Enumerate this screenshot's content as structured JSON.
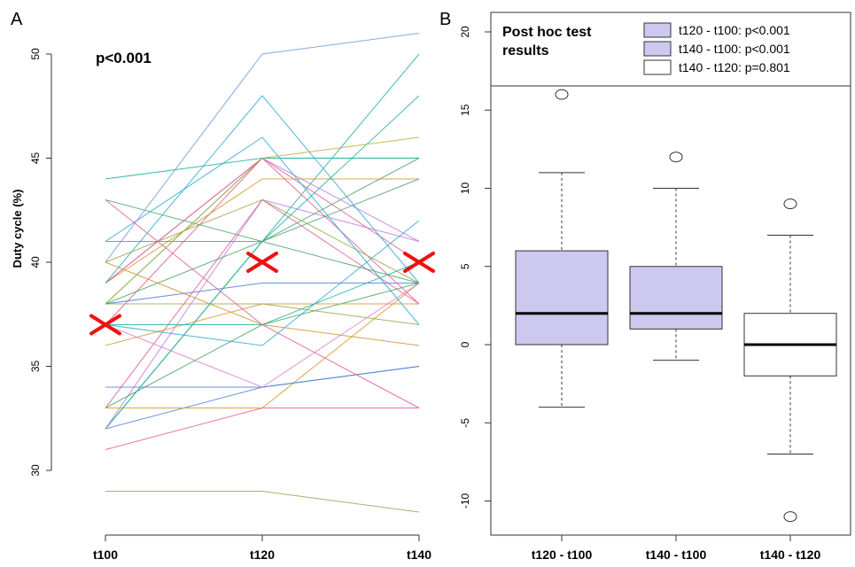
{
  "chart_data": [
    {
      "panel_label": "A",
      "type": "line",
      "annotation": "p<0.001",
      "ylabel": "Duty cycle (%)",
      "categories": [
        "t100",
        "t120",
        "t140"
      ],
      "y_ticks": [
        "30",
        "35",
        "40",
        "45",
        "50"
      ],
      "ylim": [
        27.5,
        51.5
      ],
      "mean_markers": [
        37,
        40,
        40
      ],
      "mean_marker_color": "#ee1111",
      "series": [
        {
          "values": [
            29,
            29,
            28
          ],
          "color": "#95a84a"
        },
        {
          "values": [
            31,
            33,
            33
          ],
          "color": "#e45a8e"
        },
        {
          "values": [
            32,
            34,
            35
          ],
          "color": "#4f7fd6"
        },
        {
          "values": [
            32,
            41,
            45
          ],
          "color": "#4aa66c"
        },
        {
          "values": [
            32,
            41,
            50
          ],
          "color": "#1fb0a0"
        },
        {
          "values": [
            32,
            43,
            41
          ],
          "color": "#c37adf"
        },
        {
          "values": [
            33,
            33,
            39
          ],
          "color": "#d6932c"
        },
        {
          "values": [
            33,
            37,
            39
          ],
          "color": "#4aa66c"
        },
        {
          "values": [
            33,
            43,
            38
          ],
          "color": "#e45a8e"
        },
        {
          "values": [
            34,
            34,
            35
          ],
          "color": "#4f7fd6"
        },
        {
          "values": [
            36,
            38,
            38
          ],
          "color": "#d6932c"
        },
        {
          "values": [
            37,
            36,
            42
          ],
          "color": "#2da9d6"
        },
        {
          "values": [
            37,
            37,
            40
          ],
          "color": "#1fb0a0"
        },
        {
          "values": [
            37,
            45,
            40
          ],
          "color": "#e45a8e"
        },
        {
          "values": [
            38,
            38,
            37
          ],
          "color": "#95a84a"
        },
        {
          "values": [
            38,
            39,
            39
          ],
          "color": "#4f7fd6"
        },
        {
          "values": [
            38,
            41,
            44
          ],
          "color": "#4aa66c"
        },
        {
          "values": [
            38,
            45,
            45
          ],
          "color": "#1fb0a0"
        },
        {
          "values": [
            39,
            45,
            41
          ],
          "color": "#c37adf"
        },
        {
          "values": [
            39,
            44,
            44
          ],
          "color": "#d6932c"
        },
        {
          "values": [
            39,
            45,
            38
          ],
          "color": "#e45a8e"
        },
        {
          "values": [
            39,
            48,
            39
          ],
          "color": "#2da9d6"
        },
        {
          "values": [
            40,
            37,
            36
          ],
          "color": "#d6932c"
        },
        {
          "values": [
            40,
            43,
            39
          ],
          "color": "#95a84a"
        },
        {
          "values": [
            41,
            41,
            48
          ],
          "color": "#1fb0a0"
        },
        {
          "values": [
            41,
            46,
            37
          ],
          "color": "#2da9d6"
        },
        {
          "values": [
            43,
            37,
            33
          ],
          "color": "#e45a8e"
        },
        {
          "values": [
            43,
            41,
            39
          ],
          "color": "#4aa66c"
        },
        {
          "values": [
            44,
            45,
            45
          ],
          "color": "#1fb0a0"
        },
        {
          "values": [
            40,
            50,
            51
          ],
          "color": "#6f9ae0"
        },
        {
          "values": [
            38,
            45,
            46
          ],
          "color": "#b4b13c"
        },
        {
          "values": [
            37,
            34,
            39
          ],
          "color": "#e07ad0"
        }
      ]
    },
    {
      "panel_label": "B",
      "type": "box",
      "title": "Post hoc test results",
      "categories": [
        "t120 - t100",
        "t140 - t100",
        "t140 - t120"
      ],
      "y_ticks": [
        "-10",
        "-5",
        "0",
        "5",
        "10",
        "15",
        "20"
      ],
      "ylim": [
        -12,
        21.5
      ],
      "legend": [
        {
          "label": "t120 - t100: p<0.001",
          "fill": "#cdc8ef"
        },
        {
          "label": "t140 - t100: p<0.001",
          "fill": "#cdc8ef"
        },
        {
          "label": "t140 - t120: p=0.801",
          "fill": "#ffffff"
        }
      ],
      "boxes": [
        {
          "whisker_low": -4,
          "q1": 0,
          "median": 2,
          "q3": 6,
          "whisker_high": 11,
          "outliers": [
            16
          ],
          "fill": "#cdc8ef"
        },
        {
          "whisker_low": -1,
          "q1": 1,
          "median": 2,
          "q3": 5,
          "whisker_high": 10,
          "outliers": [
            12
          ],
          "fill": "#cdc8ef"
        },
        {
          "whisker_low": -7,
          "q1": -2,
          "median": 0,
          "q3": 2,
          "whisker_high": 7,
          "outliers": [
            9,
            -11
          ],
          "fill": "#ffffff"
        }
      ]
    }
  ]
}
